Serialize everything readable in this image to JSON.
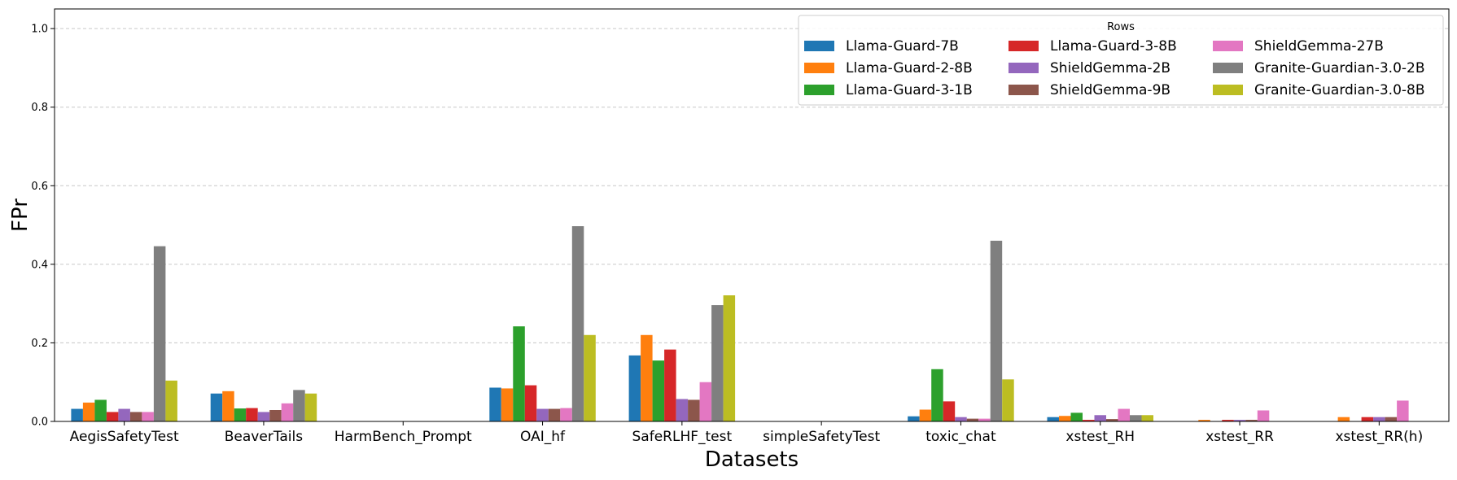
{
  "chart_data": {
    "type": "bar",
    "title": "",
    "xlabel": "Datasets",
    "ylabel": "FPr",
    "ylim": [
      0,
      1.05
    ],
    "yticks": [
      0.0,
      0.2,
      0.4,
      0.6,
      0.8,
      1.0
    ],
    "ytick_labels": [
      "0.0",
      "0.2",
      "0.4",
      "0.6",
      "0.8",
      "1.0"
    ],
    "grid": "y-dashed",
    "legend": {
      "title": "Rows",
      "position": "top-right",
      "columns": 3
    },
    "categories": [
      "AegisSafetyTest",
      "BeaverTails",
      "HarmBench_Prompt",
      "OAI_hf",
      "SafeRLHF_test",
      "simpleSafetyTest",
      "toxic_chat",
      "xstest_RH",
      "xstest_RR",
      "xstest_RR(h)"
    ],
    "series": [
      {
        "name": "Llama-Guard-7B",
        "color": "#1f77b4",
        "values": [
          0.032,
          0.071,
          0,
          0.086,
          0.168,
          0,
          0.013,
          0.011,
          0,
          0
        ]
      },
      {
        "name": "Llama-Guard-2-8B",
        "color": "#ff7f0e",
        "values": [
          0.048,
          0.077,
          0,
          0.084,
          0.22,
          0,
          0.03,
          0.014,
          0.004,
          0.011
        ]
      },
      {
        "name": "Llama-Guard-3-1B",
        "color": "#2ca02c",
        "values": [
          0.055,
          0.033,
          0,
          0.242,
          0.155,
          0,
          0.133,
          0.022,
          0,
          0
        ]
      },
      {
        "name": "Llama-Guard-3-8B",
        "color": "#d62728",
        "values": [
          0.024,
          0.034,
          0,
          0.092,
          0.183,
          0,
          0.051,
          0.004,
          0.004,
          0.011
        ]
      },
      {
        "name": "ShieldGemma-2B",
        "color": "#9467bd",
        "values": [
          0.032,
          0.024,
          0,
          0.032,
          0.057,
          0,
          0.011,
          0.016,
          0.004,
          0.011
        ]
      },
      {
        "name": "ShieldGemma-9B",
        "color": "#8c564b",
        "values": [
          0.024,
          0.029,
          0,
          0.032,
          0.055,
          0,
          0.007,
          0.006,
          0.004,
          0.011
        ]
      },
      {
        "name": "ShieldGemma-27B",
        "color": "#e377c2",
        "values": [
          0.024,
          0.046,
          0,
          0.034,
          0.1,
          0,
          0.007,
          0.032,
          0.028,
          0.053
        ]
      },
      {
        "name": "Granite-Guardian-3.0-2B",
        "color": "#7f7f7f",
        "values": [
          0.446,
          0.08,
          0,
          0.497,
          0.296,
          0,
          0.46,
          0.016,
          0,
          0
        ]
      },
      {
        "name": "Granite-Guardian-3.0-8B",
        "color": "#bcbd22",
        "values": [
          0.104,
          0.071,
          0,
          0.22,
          0.321,
          0,
          0.107,
          0.016,
          0,
          0
        ]
      }
    ]
  }
}
